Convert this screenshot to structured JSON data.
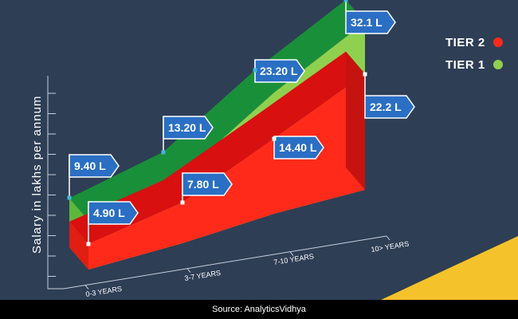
{
  "chart_data": {
    "type": "area",
    "ylabel": "Salary in lakhs per annum",
    "categories": [
      "0-3 YEARS",
      "3-7 YEARS",
      "7-10 YEARS",
      "10> YEARS"
    ],
    "series": [
      {
        "name": "TIER 1",
        "values": [
          9.4,
          13.2,
          23.2,
          32.1
        ],
        "labels": [
          "9.40 L",
          "13.20 L",
          "23.20 L",
          "32.1 L"
        ],
        "color": "#8fd14f",
        "top_color": "#1a8f3a"
      },
      {
        "name": "TIER 2",
        "values": [
          4.9,
          7.8,
          14.4,
          22.2
        ],
        "labels": [
          "4.90 L",
          "7.80 L",
          "14.40 L",
          "22.2 L"
        ],
        "color": "#ff2a1a",
        "top_color": "#d81010"
      }
    ],
    "legend_position": "top-right",
    "grid": false
  },
  "colors": {
    "background": "#2e3e55",
    "flag": "#2a6fc4",
    "accent": "#f4c22b"
  },
  "source": "Source: AnalyticsVidhya"
}
